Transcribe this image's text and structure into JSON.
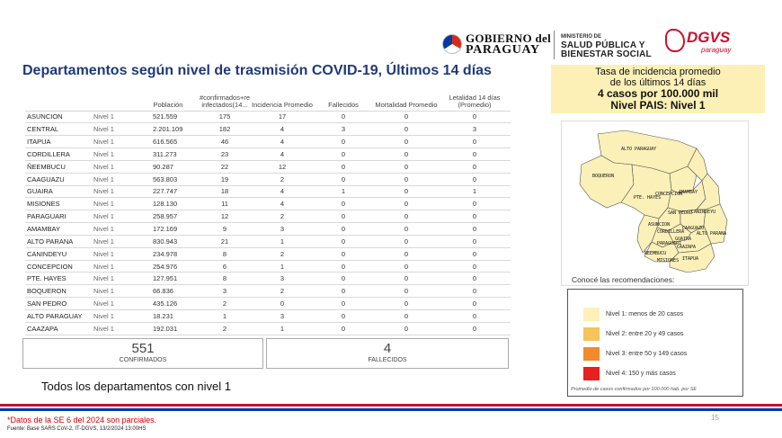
{
  "header": {
    "gov_line1": "GOBIERNO del",
    "gov_line2": "PARAGUAY",
    "ministry_line1": "MINISTERIO DE",
    "ministry_line2": "SALUD PÚBLICA Y",
    "ministry_line3": "BIENESTAR SOCIAL",
    "dgvs": "DGVS",
    "dgvs_sub": "paraguay"
  },
  "title": "Departamentos según nivel de trasmisión COVID-19, Últimos 14 días",
  "incidence": {
    "line1": "Tasa de incidencia promedio",
    "line2": "de los últimos 14 días",
    "line3": "4 casos por 100.000 mil",
    "line4": "Nivel PAIS: Nivel 1"
  },
  "table": {
    "headers": {
      "population": "Población",
      "confirmed": "#confirmados+re infectados(14...",
      "incidence": "Incidencia Promedio",
      "deaths": "Fallecidos",
      "mortality": "Mortalidad Promedio",
      "lethality": "Letalidad 14 días (Promedio)"
    },
    "rows": [
      {
        "dept": "ASUNCION",
        "level": "Nivel 1",
        "pop": "521.559",
        "conf": "175",
        "inc": "17",
        "fall": "0",
        "mort": "0",
        "let": "0"
      },
      {
        "dept": "CENTRAL",
        "level": "Nivel 1",
        "pop": "2.201.109",
        "conf": "182",
        "inc": "4",
        "fall": "3",
        "mort": "0",
        "let": "3"
      },
      {
        "dept": "ITAPUA",
        "level": "Nivel 1",
        "pop": "616.565",
        "conf": "46",
        "inc": "4",
        "fall": "0",
        "mort": "0",
        "let": "0"
      },
      {
        "dept": "CORDILLERA",
        "level": "Nivel 1",
        "pop": "311.273",
        "conf": "23",
        "inc": "4",
        "fall": "0",
        "mort": "0",
        "let": "0"
      },
      {
        "dept": "ÑEEMBUCU",
        "level": "Nivel 1",
        "pop": "90.287",
        "conf": "22",
        "inc": "12",
        "fall": "0",
        "mort": "0",
        "let": "0"
      },
      {
        "dept": "CAAGUAZU",
        "level": "Nivel 1",
        "pop": "563.803",
        "conf": "19",
        "inc": "2",
        "fall": "0",
        "mort": "0",
        "let": "0"
      },
      {
        "dept": "GUAIRA",
        "level": "Nivel 1",
        "pop": "227.747",
        "conf": "18",
        "inc": "4",
        "fall": "1",
        "mort": "0",
        "let": "1"
      },
      {
        "dept": "MISIONES",
        "level": "Nivel 1",
        "pop": "128.130",
        "conf": "11",
        "inc": "4",
        "fall": "0",
        "mort": "0",
        "let": "0"
      },
      {
        "dept": "PARAGUARI",
        "level": "Nivel 1",
        "pop": "258.957",
        "conf": "12",
        "inc": "2",
        "fall": "0",
        "mort": "0",
        "let": "0"
      },
      {
        "dept": "AMAMBAY",
        "level": "Nivel 1",
        "pop": "172.169",
        "conf": "9",
        "inc": "3",
        "fall": "0",
        "mort": "0",
        "let": "0"
      },
      {
        "dept": "ALTO PARANA",
        "level": "Nivel 1",
        "pop": "830.943",
        "conf": "21",
        "inc": "1",
        "fall": "0",
        "mort": "0",
        "let": "0"
      },
      {
        "dept": "CANINDEYU",
        "level": "Nivel 1",
        "pop": "234.978",
        "conf": "8",
        "inc": "2",
        "fall": "0",
        "mort": "0",
        "let": "0"
      },
      {
        "dept": "CONCEPCION",
        "level": "Nivel 1",
        "pop": "254.976",
        "conf": "6",
        "inc": "1",
        "fall": "0",
        "mort": "0",
        "let": "0"
      },
      {
        "dept": "PTE. HAYES",
        "level": "Nivel 1",
        "pop": "127.951",
        "conf": "8",
        "inc": "3",
        "fall": "0",
        "mort": "0",
        "let": "0"
      },
      {
        "dept": "BOQUERON",
        "level": "Nivel 1",
        "pop": "66.836",
        "conf": "3",
        "inc": "2",
        "fall": "0",
        "mort": "0",
        "let": "0"
      },
      {
        "dept": "SAN PEDRO",
        "level": "Nivel 1",
        "pop": "435.126",
        "conf": "2",
        "inc": "0",
        "fall": "0",
        "mort": "0",
        "let": "0"
      },
      {
        "dept": "ALTO PARAGUAY",
        "level": "Nivel 1",
        "pop": "18.231",
        "conf": "1",
        "inc": "3",
        "fall": "0",
        "mort": "0",
        "let": "0"
      },
      {
        "dept": "CAAZAPA",
        "level": "Nivel 1",
        "pop": "192.031",
        "conf": "2",
        "inc": "1",
        "fall": "0",
        "mort": "0",
        "let": "0"
      }
    ]
  },
  "summary": {
    "confirmed_value": "551",
    "confirmed_label": "CONFIRMADOS",
    "deaths_value": "4",
    "deaths_label": "FALLECIDOS"
  },
  "all_departments_text": "Todos los departamentos con nivel 1",
  "map": {
    "fill_color": "#fbf0b8",
    "labels": {
      "alto_paraguay": "ALTO PARAGUAY",
      "boqueron": "BOQUERON",
      "pte_hayes": "PTE. HAYES",
      "concepcion": "CONCEPCION",
      "amambay": "AMAMBAY",
      "san_pedro": "SAN PEDRO",
      "canindeyu": "CANINDEYU",
      "asuncion": "ASUNCION",
      "cordillera": "CORDILLERA",
      "alto_parana": "ALTO PARANA",
      "caaguazu": "CAAGUAZU",
      "paraguari": "PARAGUARI",
      "guaira": "GUAIRA",
      "caazapa": "CAAZAPA",
      "neembucu": "ÑEEMBUCU",
      "misiones": "MISIONES",
      "itapua": "ITAPUA"
    }
  },
  "recommendations_title": "Conocé las recomendaciones:",
  "legend": {
    "items": [
      {
        "label": "Nivel 1: menos de 20 casos",
        "color": "#fdf0b8"
      },
      {
        "label": "Nivel 2: entre 20 y 49 casos",
        "color": "#f6c35c"
      },
      {
        "label": "Nivel 3: entre 50 y 149 casos",
        "color": "#f08a2a"
      },
      {
        "label": "Nivel 4: 150 y más casos",
        "color": "#e82020"
      }
    ],
    "note": "Promedio de casos confirmados por 100.000 hab. por SE"
  },
  "footer": {
    "page_number": "15",
    "footnote": "*Datos de la SE 6 del 2024 son parciales.",
    "source": "Fuente: Base SARS CoV-2, IT-DGVS, 13/2/2024 13:00HS"
  }
}
